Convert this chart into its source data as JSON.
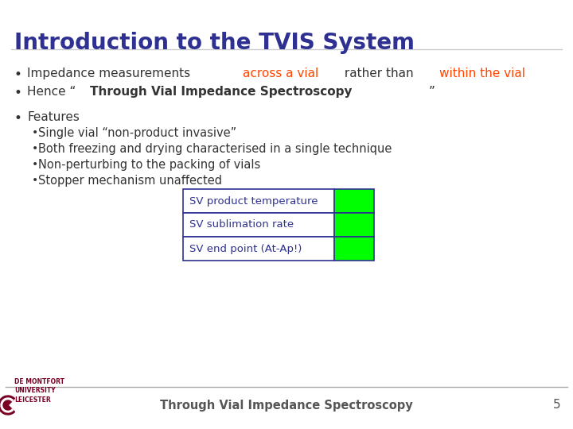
{
  "title": "Introduction to the TVIS System",
  "title_color": "#2E3192",
  "title_fontsize": 20,
  "bg_color": "#FFFFFF",
  "bullet1_normal": "Impedance measurements ",
  "bullet1_red1": "across a vial",
  "bullet1_mid": " rather than ",
  "bullet1_red2": "within the vial",
  "bullet2_normal": "Hence “",
  "bullet2_bold": "Through Vial Impedance Spectroscopy",
  "bullet2_end": "”",
  "bullet3": "Features",
  "sub_bullets": [
    "Single vial “non-product invasive”",
    "Both freezing and drying characterised in a single technique",
    "Non-perturbing to the packing of vials",
    "Stopper mechanism unaffected"
  ],
  "table_rows": [
    "SV product temperature",
    "SV sublimation rate",
    "SV end point (At-Ap!)"
  ],
  "table_text_color": "#2E3192",
  "table_green": "#00FF00",
  "table_border": "#2E3192",
  "footer_text": "Through Vial Impedance Spectroscopy",
  "footer_color": "#555555",
  "footer_page": "5",
  "red_color": "#FF4500",
  "body_color": "#333333",
  "body_fontsize": 11,
  "sub_fontsize": 10.5,
  "footer_line_color": "#AAAAAA"
}
